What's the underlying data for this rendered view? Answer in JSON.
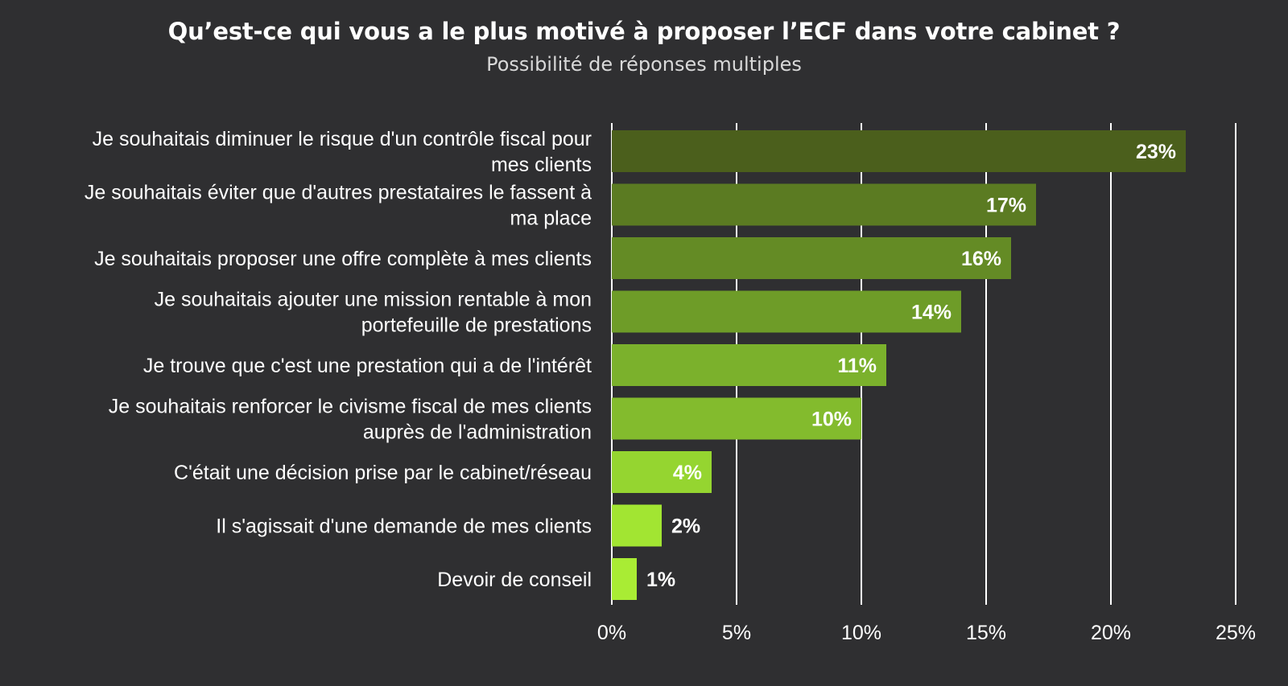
{
  "chart_data": {
    "type": "bar",
    "orientation": "horizontal",
    "title": "Qu’est-ce qui vous a le plus motivé à proposer l’ECF dans votre cabinet ?",
    "subtitle": "Possibilité de réponses multiples",
    "categories": [
      [
        "Je souhaitais diminuer le risque d'un contrôle fiscal pour",
        "mes clients"
      ],
      [
        "Je souhaitais éviter que d'autres prestataires le fassent à",
        "ma place"
      ],
      [
        "Je souhaitais proposer une offre complète à mes clients"
      ],
      [
        "Je souhaitais ajouter une mission rentable à mon",
        "portefeuille de prestations"
      ],
      [
        "Je trouve que c'est une prestation qui a de l'intérêt"
      ],
      [
        "Je souhaitais renforcer le civisme fiscal de mes clients",
        "auprès de l'administration"
      ],
      [
        "C'était une décision prise par le cabinet/réseau"
      ],
      [
        "Il s'agissait d'une demande de mes clients"
      ],
      [
        "Devoir de conseil"
      ]
    ],
    "values": [
      23,
      17,
      16,
      14,
      11,
      10,
      4,
      2,
      1
    ],
    "value_labels": [
      "23%",
      "17%",
      "16%",
      "14%",
      "11%",
      "10%",
      "4%",
      "2%",
      "1%"
    ],
    "bar_colors": [
      "#4b5f1c",
      "#5b7b22",
      "#648b25",
      "#6e9c28",
      "#7bb12c",
      "#83bb2d",
      "#95d530",
      "#a2e532",
      "#a9ec34"
    ],
    "xlim": [
      0,
      25
    ],
    "xticks": [
      0,
      5,
      10,
      15,
      20,
      25
    ],
    "xtick_labels": [
      "0%",
      "5%",
      "10%",
      "15%",
      "20%",
      "25%"
    ],
    "grid": true,
    "legend": "none"
  },
  "colors": {
    "background": "#2f2f31",
    "text": "#ffffff",
    "gridline": "#ffffff"
  }
}
